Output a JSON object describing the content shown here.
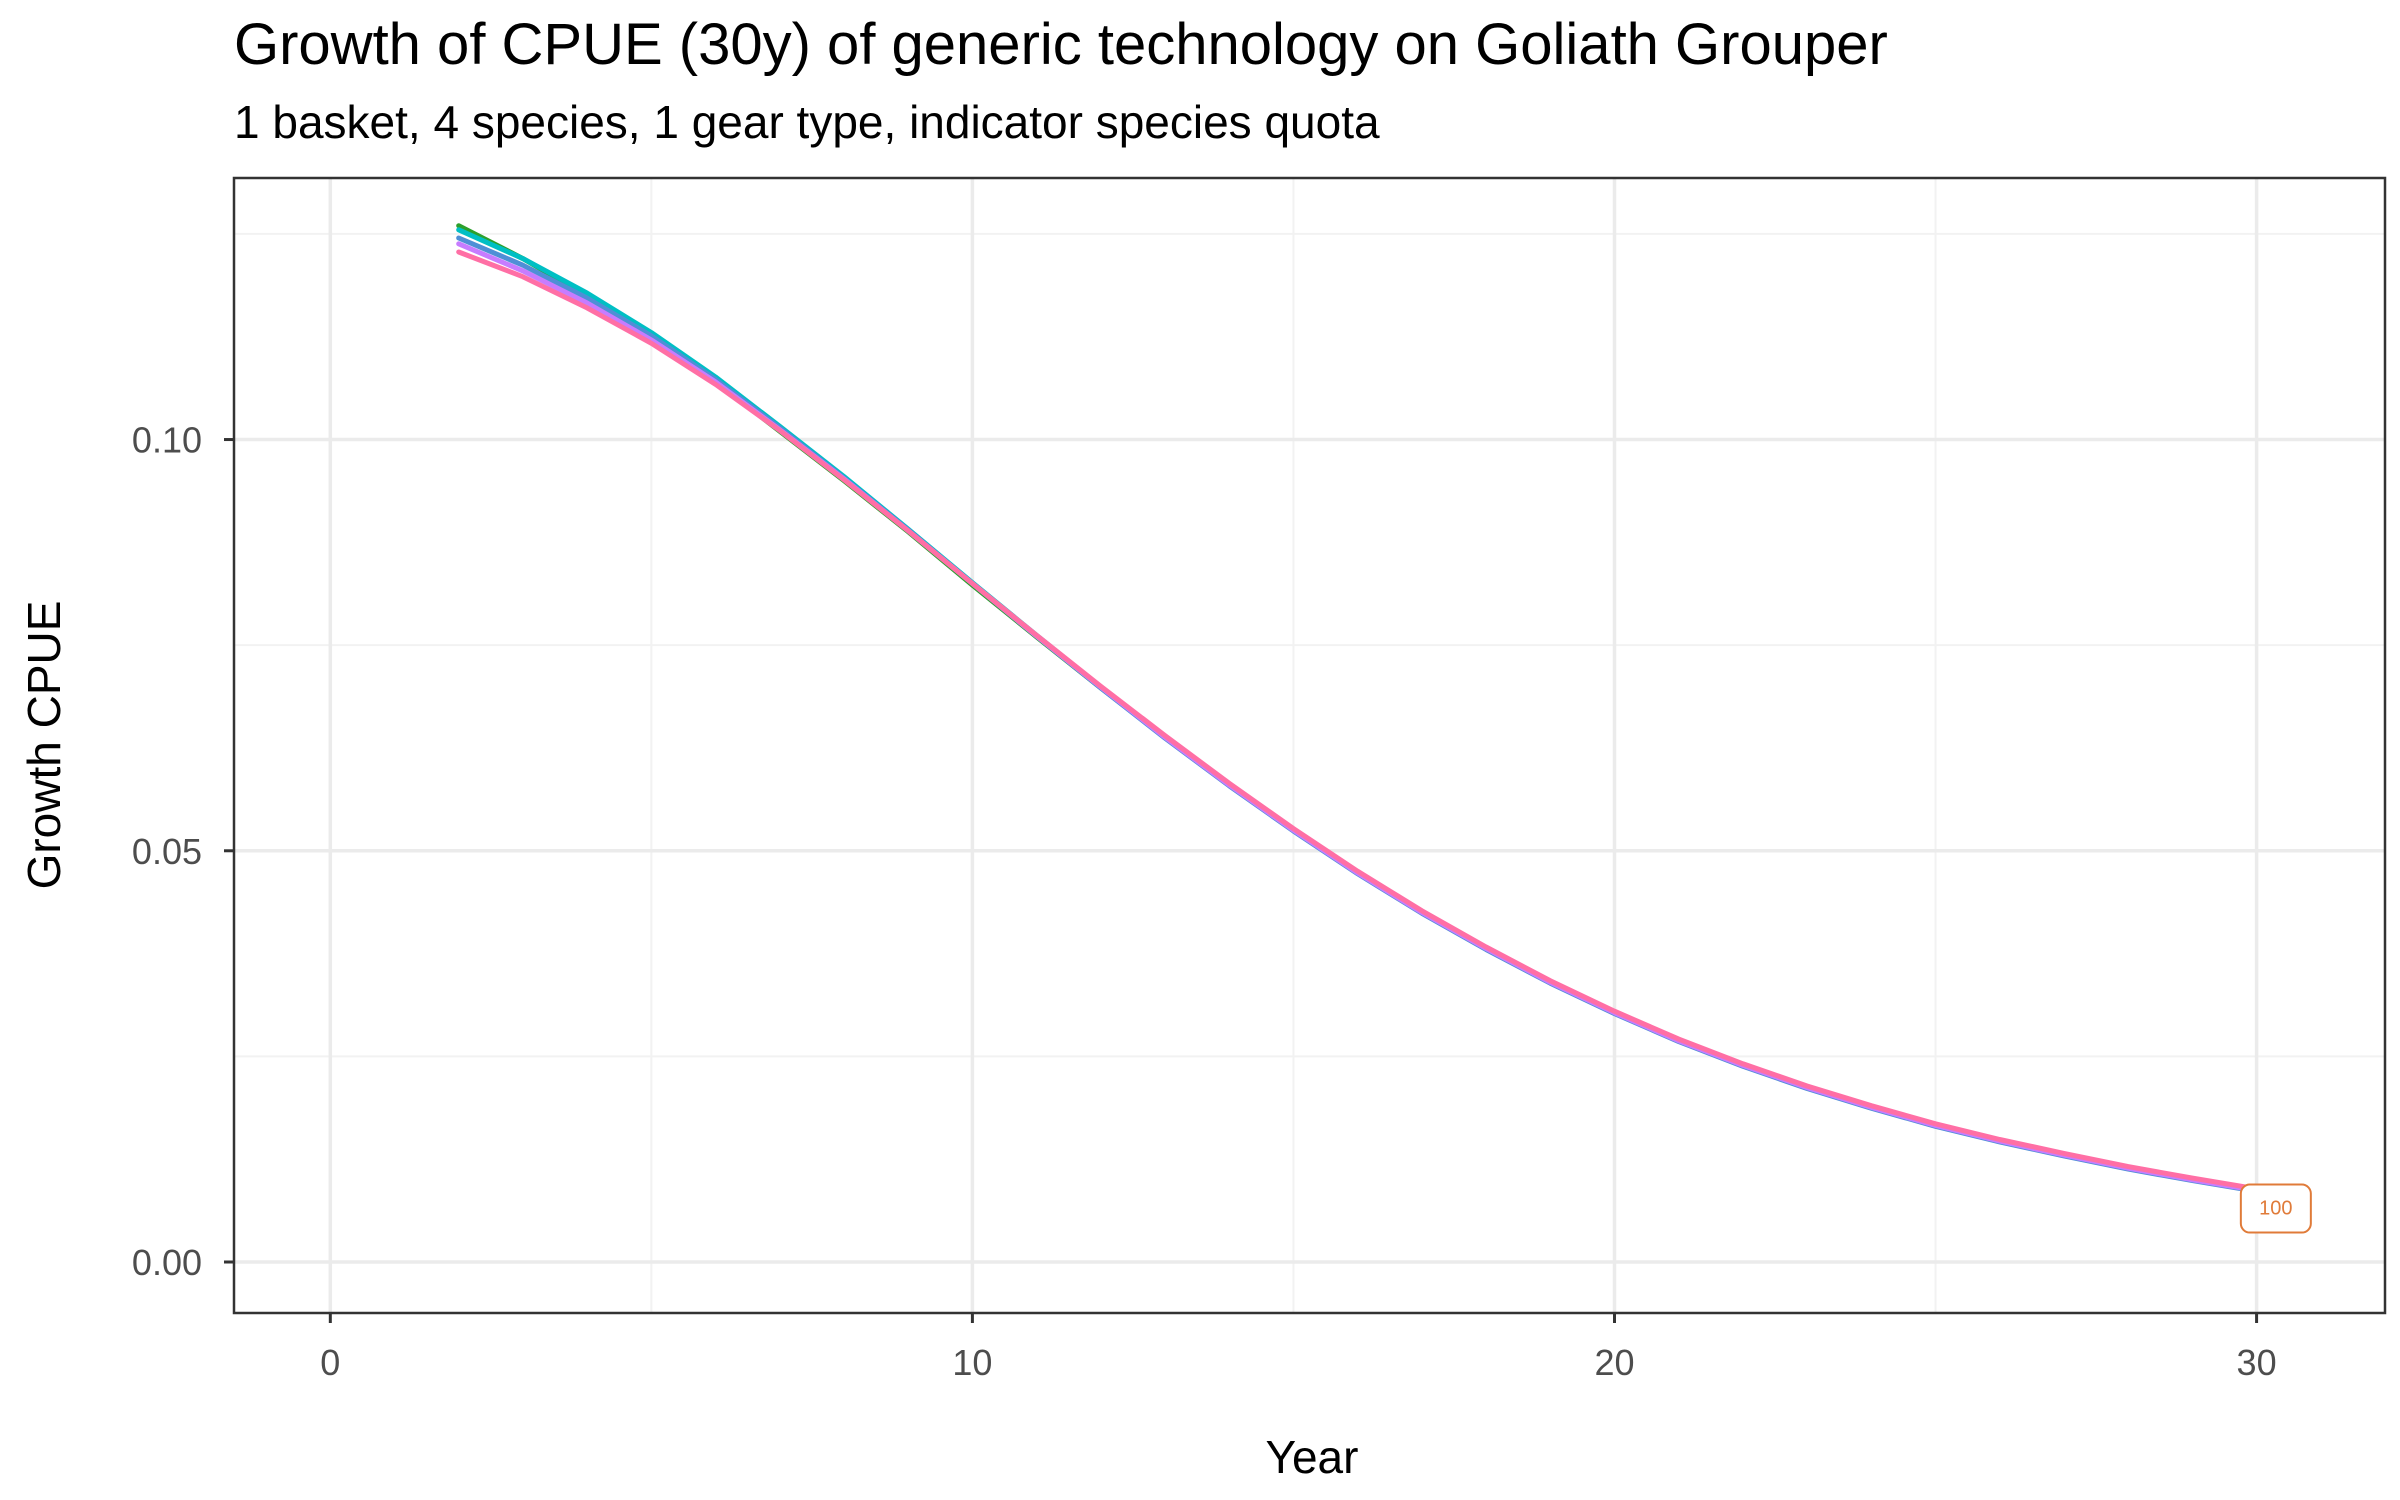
{
  "chart_data": {
    "type": "line",
    "title": "Growth of CPUE (30y) of generic technology on Goliath Grouper",
    "subtitle": "1 basket, 4 species, 1 gear type, indicator species quota",
    "xlabel": "Year",
    "ylabel": "Growth CPUE",
    "xlim": [
      -1.5,
      32
    ],
    "ylim": [
      -0.0062,
      0.1318
    ],
    "x_ticks": [
      0,
      10,
      20,
      30
    ],
    "x_tick_labels": [
      "0",
      "10",
      "20",
      "30"
    ],
    "x_minor": [
      5,
      15,
      25
    ],
    "y_ticks": [
      0.0,
      0.05,
      0.1
    ],
    "y_tick_labels": [
      "0.00",
      "0.05",
      "0.10"
    ],
    "y_minor": [
      0.025,
      0.075,
      0.125
    ],
    "grid": true,
    "legend": "none",
    "end_label": {
      "text": "100",
      "x": 30.3,
      "y": 0.0065,
      "color": "#e07b39"
    },
    "series": [
      {
        "color": "#2ca02c",
        "x": [
          2,
          3,
          4,
          5,
          6,
          7,
          8,
          9,
          10,
          11,
          12,
          13,
          14,
          15,
          16,
          17,
          18,
          19,
          20,
          21,
          22,
          23,
          24,
          25,
          26,
          27,
          28,
          29,
          30
        ],
        "y": [
          0.126,
          0.122,
          0.1175,
          0.1125,
          0.107,
          0.101,
          0.095,
          0.0888,
          0.0823,
          0.076,
          0.0698,
          0.0638,
          0.058,
          0.0526,
          0.0474,
          0.0426,
          0.0382,
          0.0341,
          0.0304,
          0.027,
          0.024,
          0.0213,
          0.0189,
          0.0167,
          0.0148,
          0.0131,
          0.0115,
          0.0101,
          0.0088
        ]
      },
      {
        "color": "#00bfc4",
        "x": [
          2,
          3,
          4,
          5,
          6,
          7,
          8,
          9,
          10,
          11,
          12,
          13,
          14,
          15,
          16,
          17,
          18,
          19,
          20,
          21,
          22,
          23,
          24,
          25,
          26,
          27,
          28,
          29,
          30
        ],
        "y": [
          0.1255,
          0.122,
          0.1178,
          0.113,
          0.1076,
          0.1016,
          0.0955,
          0.0891,
          0.0826,
          0.0762,
          0.0699,
          0.0638,
          0.058,
          0.0525,
          0.0473,
          0.0425,
          0.0381,
          0.034,
          0.0303,
          0.0269,
          0.0239,
          0.0212,
          0.0188,
          0.0166,
          0.0147,
          0.013,
          0.0114,
          0.01,
          0.0087
        ]
      },
      {
        "color": "#4f8fd6",
        "x": [
          2,
          3,
          4,
          5,
          6,
          7,
          8,
          9,
          10,
          11,
          12,
          13,
          14,
          15,
          16,
          17,
          18,
          19,
          20,
          21,
          22,
          23,
          24,
          25,
          26,
          27,
          28,
          29,
          30
        ],
        "y": [
          0.1245,
          0.1212,
          0.1172,
          0.1126,
          0.1073,
          0.1014,
          0.0953,
          0.089,
          0.0825,
          0.0761,
          0.0698,
          0.0637,
          0.0579,
          0.0524,
          0.0472,
          0.0424,
          0.038,
          0.0339,
          0.0302,
          0.0268,
          0.0238,
          0.0211,
          0.0187,
          0.0165,
          0.0146,
          0.0129,
          0.0113,
          0.0099,
          0.0086
        ]
      },
      {
        "color": "#c77cff",
        "x": [
          2,
          3,
          4,
          5,
          6,
          7,
          8,
          9,
          10,
          11,
          12,
          13,
          14,
          15,
          16,
          17,
          18,
          19,
          20,
          21,
          22,
          23,
          24,
          25,
          26,
          27,
          28,
          29,
          30
        ],
        "y": [
          0.1238,
          0.1205,
          0.1166,
          0.1121,
          0.107,
          0.1012,
          0.0952,
          0.0889,
          0.0825,
          0.0761,
          0.0699,
          0.0638,
          0.058,
          0.0525,
          0.0473,
          0.0425,
          0.0381,
          0.034,
          0.0303,
          0.0269,
          0.0239,
          0.0212,
          0.0188,
          0.0166,
          0.0147,
          0.013,
          0.0114,
          0.01,
          0.0087
        ]
      },
      {
        "color": "#ff6fa5",
        "x": [
          2,
          3,
          4,
          5,
          6,
          7,
          8,
          9,
          10,
          11,
          12,
          13,
          14,
          15,
          16,
          17,
          18,
          19,
          20,
          21,
          22,
          23,
          24,
          25,
          26,
          27,
          28,
          29,
          30
        ],
        "y": [
          0.1228,
          0.1198,
          0.116,
          0.1117,
          0.1067,
          0.1011,
          0.0951,
          0.0889,
          0.0825,
          0.0762,
          0.07,
          0.064,
          0.0582,
          0.0527,
          0.0475,
          0.0427,
          0.0383,
          0.0342,
          0.0305,
          0.0271,
          0.0241,
          0.0214,
          0.019,
          0.0168,
          0.0149,
          0.0132,
          0.0116,
          0.0102,
          0.0089
        ]
      }
    ]
  }
}
